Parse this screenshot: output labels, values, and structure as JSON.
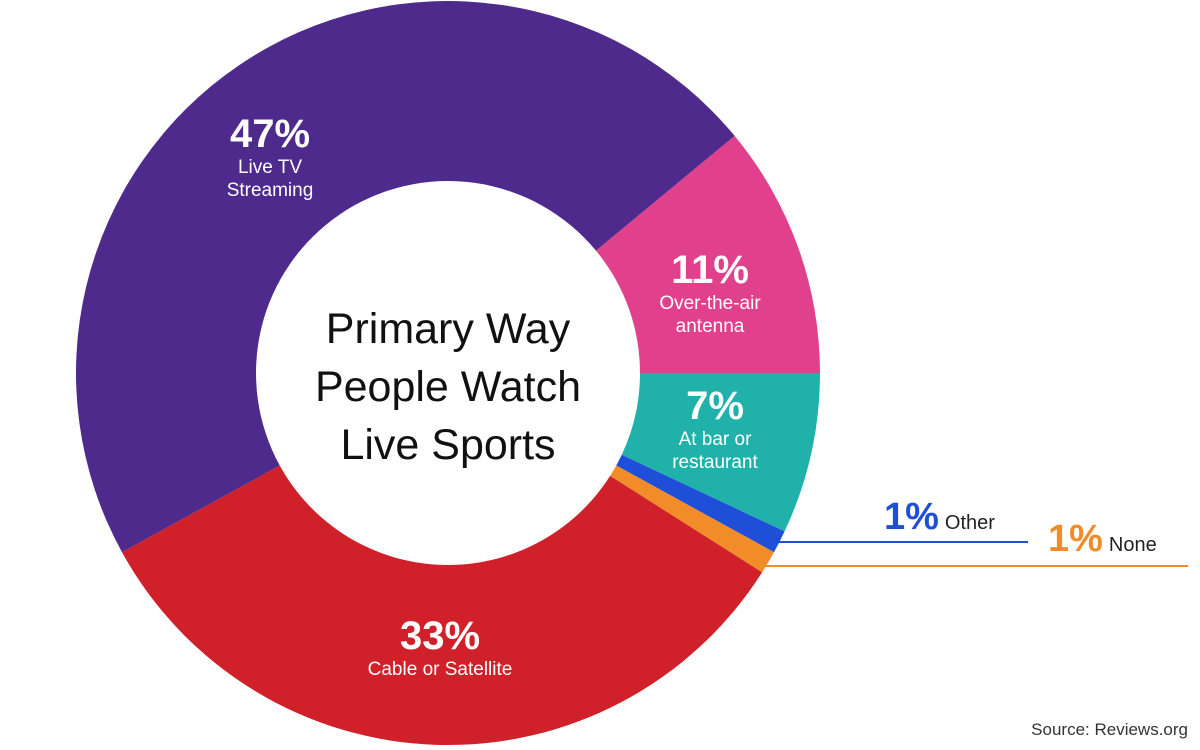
{
  "chart_data": {
    "type": "pie",
    "variant": "donut",
    "title": "Primary Way People Watch Live Sports",
    "source": "Source: Reviews.org",
    "categories": [
      "Live TV Streaming",
      "Over-the-air antenna",
      "At bar or restaurant",
      "Other",
      "None",
      "Cable or Satellite"
    ],
    "values": [
      47,
      11,
      7,
      1,
      1,
      33
    ],
    "unit": "%",
    "colors": [
      "#4d2a8c",
      "#e0408c",
      "#20b2aa",
      "#1f4fd8",
      "#f28c28",
      "#d0202a"
    ]
  },
  "labels": {
    "center_title_lines": [
      "Primary Way",
      "People Watch",
      "Live Sports"
    ],
    "streaming": {
      "pct": "47%",
      "line1": "Live TV",
      "line2": "Streaming"
    },
    "antenna": {
      "pct": "11%",
      "line1": "Over-the-air",
      "line2": "antenna"
    },
    "bar": {
      "pct": "7%",
      "line1": "At bar or",
      "line2": "restaurant"
    },
    "cable": {
      "pct": "33%",
      "line1": "Cable or Satellite"
    },
    "other": {
      "pct": "1%",
      "name": "Other"
    },
    "none": {
      "pct": "1%",
      "name": "None"
    },
    "source": "Source: Reviews.org"
  }
}
